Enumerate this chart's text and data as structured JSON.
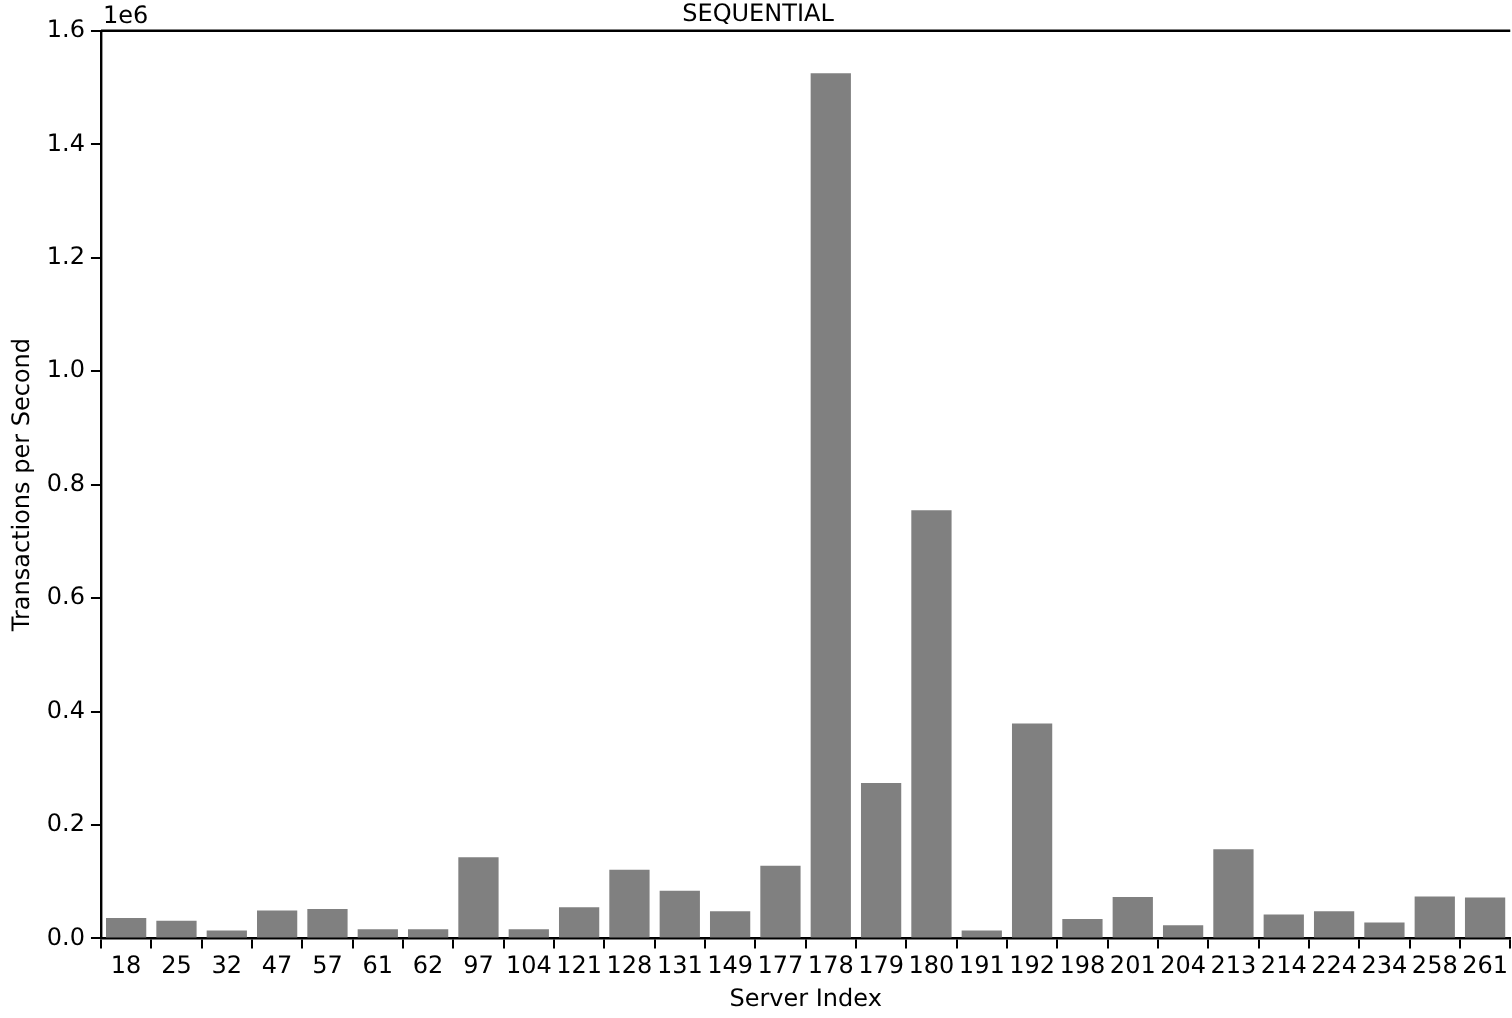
{
  "chart_data": {
    "type": "bar",
    "title": "SEQUENTIAL",
    "xlabel": "Server Index",
    "ylabel": "Transactions per Second",
    "annotations": [
      "1e6"
    ],
    "categories": [
      "18",
      "25",
      "32",
      "47",
      "57",
      "61",
      "62",
      "97",
      "104",
      "121",
      "128",
      "131",
      "149",
      "177",
      "178",
      "179",
      "180",
      "191",
      "192",
      "198",
      "201",
      "204",
      "213",
      "214",
      "224",
      "234",
      "258",
      "261"
    ],
    "values": [
      0.036,
      0.031,
      0.014,
      0.049,
      0.052,
      0.016,
      0.016,
      0.143,
      0.016,
      0.055,
      0.121,
      0.084,
      0.048,
      0.128,
      1.525,
      0.274,
      0.755,
      0.014,
      0.379,
      0.034,
      0.073,
      0.023,
      0.157,
      0.042,
      0.048,
      0.028,
      0.074,
      0.072
    ],
    "color": "#808080",
    "ylim": [
      0,
      1.6
    ],
    "yticks": [
      {
        "value": 0,
        "label": "0.0"
      },
      0.2,
      0.4,
      0.6,
      0.8,
      {
        "value": 1,
        "label": "1.0"
      },
      1.2,
      1.4,
      1.6
    ],
    "grid": false,
    "legend": false
  }
}
